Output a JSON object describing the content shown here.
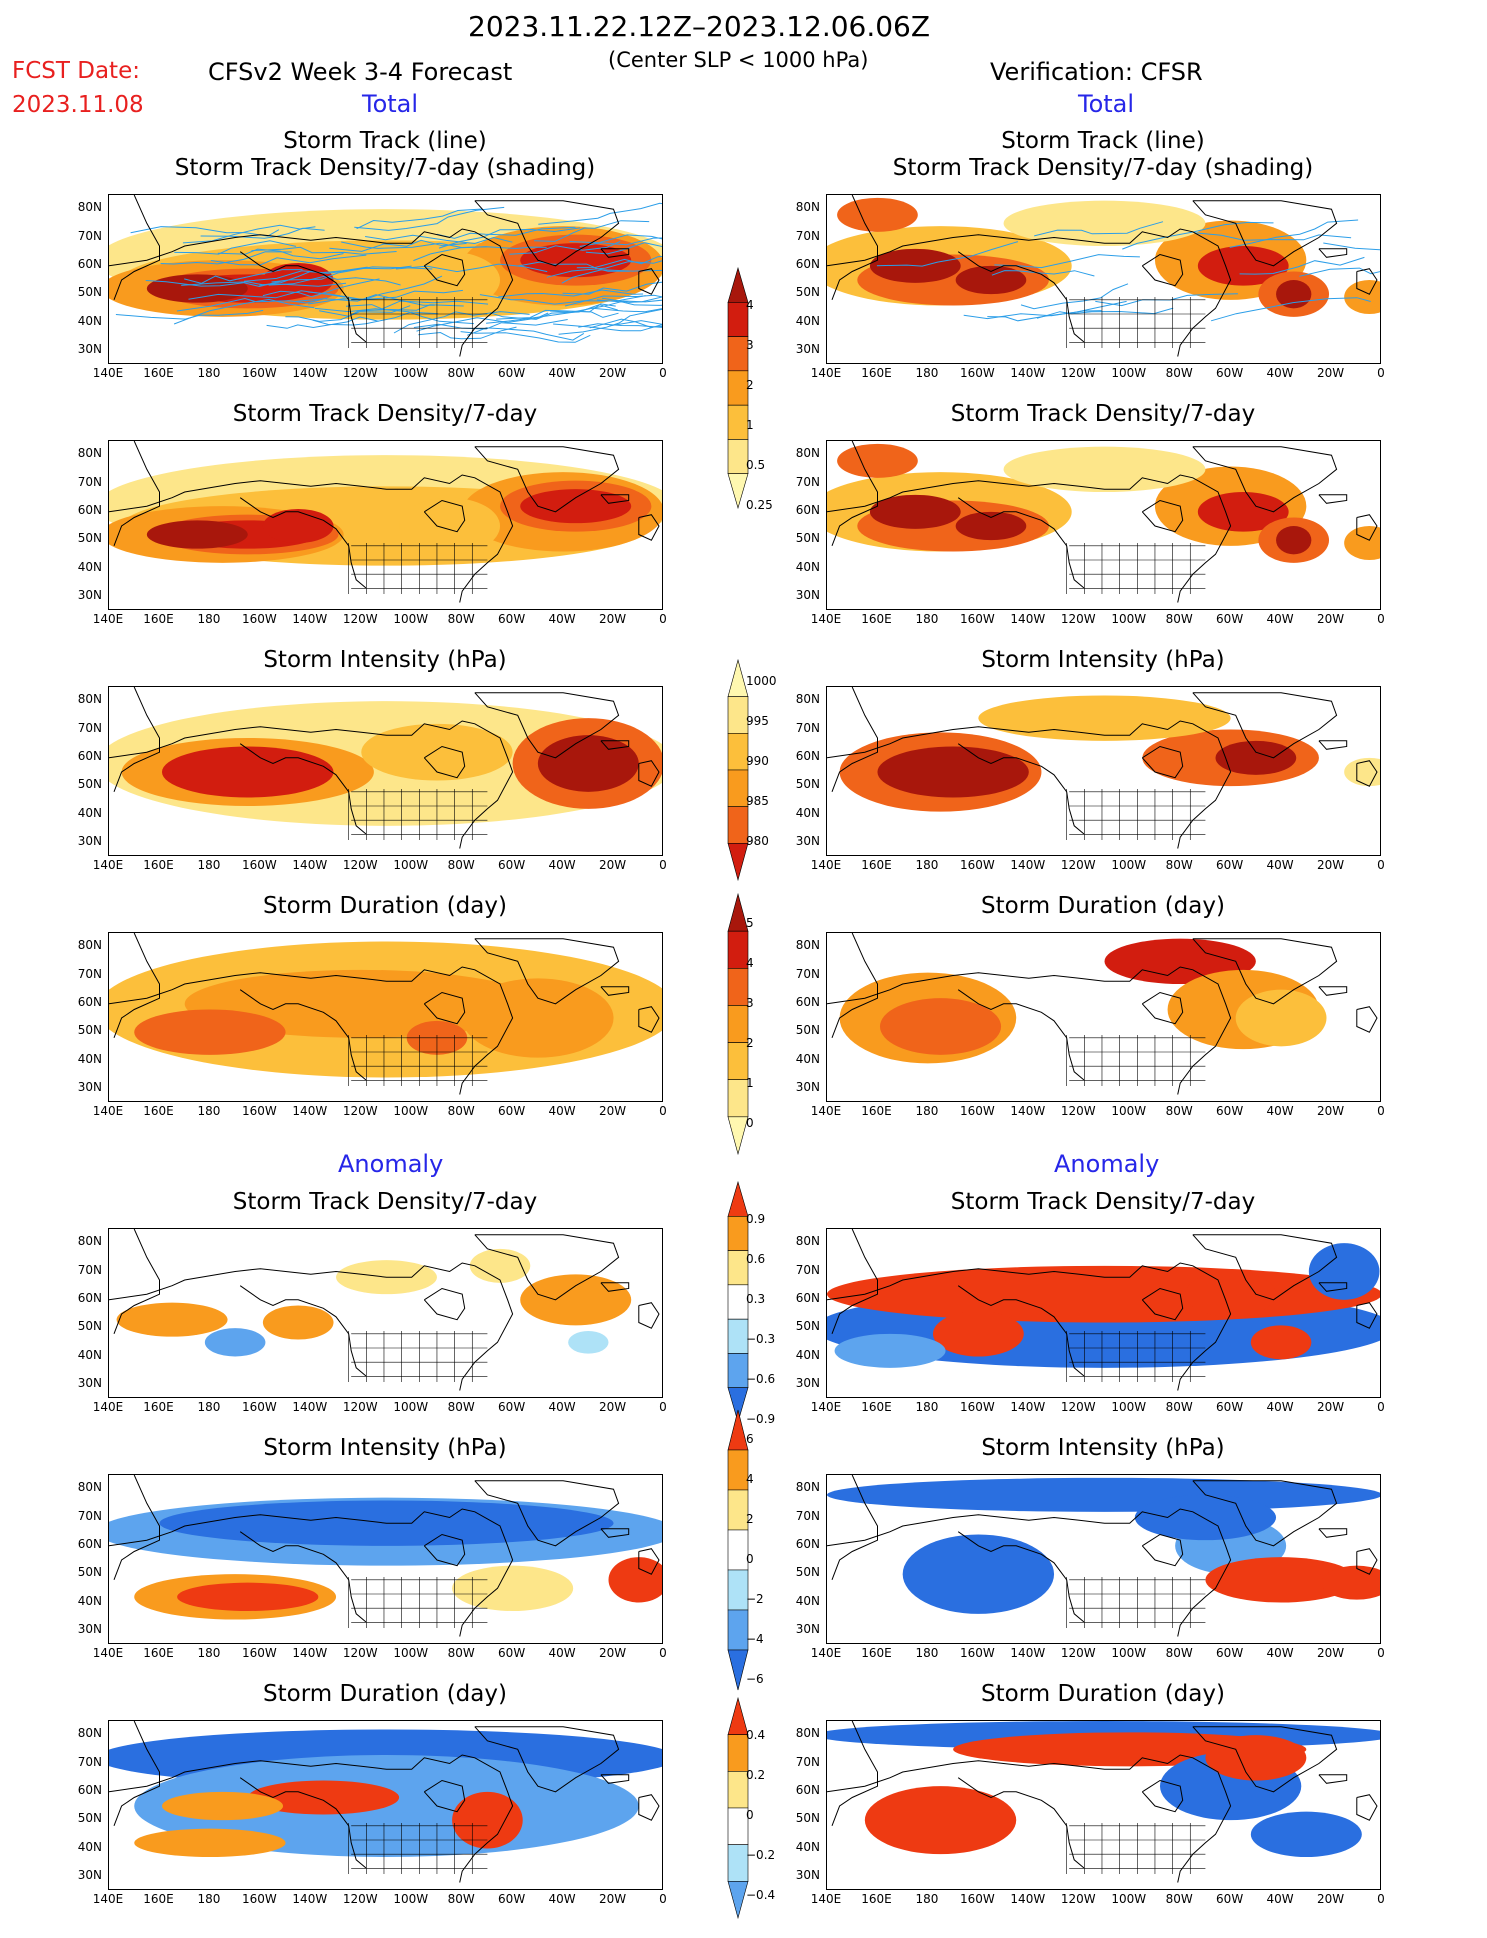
{
  "header": {
    "date_range": "2023.11.22.12Z–2023.12.06.06Z",
    "fcst_label": "FCST Date:",
    "fcst_date": "2023.11.08",
    "left_title": "CFSv2 Week 3-4 Forecast",
    "center_note": "(Center SLP < 1000 hPa)",
    "right_title": "Verification: CFSR",
    "section_total": "Total",
    "section_anomaly": "Anomaly"
  },
  "panel_titles": {
    "track_line": "Storm Track (line)",
    "track_shading": "Storm Track Density/7-day (shading)",
    "density": "Storm Track Density/7-day",
    "intensity": "Storm Intensity (hPa)",
    "duration": "Storm Duration (day)"
  },
  "axes": {
    "lat_labels": [
      "80N",
      "70N",
      "60N",
      "50N",
      "40N",
      "30N"
    ],
    "lon_labels": [
      "140E",
      "160E",
      "180",
      "160W",
      "140W",
      "120W",
      "100W",
      "80W",
      "60W",
      "40W",
      "20W",
      "0"
    ]
  },
  "colorbars": {
    "density_total": [
      "4",
      "3",
      "2",
      "1",
      "0.5",
      "0.25"
    ],
    "intensity_total": [
      "1000",
      "995",
      "990",
      "985",
      "980"
    ],
    "duration_total": [
      "5",
      "4",
      "3",
      "2",
      "1",
      "0"
    ],
    "density_anom": [
      "0.9",
      "0.6",
      "0.3",
      "−0.3",
      "−0.6",
      "−0.9"
    ],
    "intensity_anom": [
      "6",
      "4",
      "2",
      "0",
      "−2",
      "−4",
      "−6"
    ],
    "duration_anom": [
      "0.4",
      "0.2",
      "0",
      "−0.2",
      "−0.4"
    ]
  },
  "colors": {
    "density_ramp": [
      "#fff8b0",
      "#fde68a",
      "#fcbf3b",
      "#f99b1e",
      "#f0641a",
      "#d21d0f",
      "#a8170c"
    ],
    "anomaly_ramp": [
      "#2a6fe0",
      "#5da4ee",
      "#aee2f7",
      "#ffffff",
      "#fde68a",
      "#f99b1e",
      "#ee3a12"
    ],
    "track_line": "#2c9ee8"
  }
}
